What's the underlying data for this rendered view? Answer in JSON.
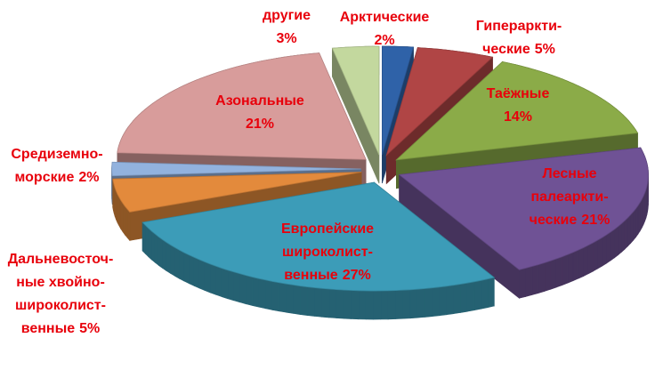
{
  "chart_data": {
    "type": "pie3d",
    "categories": [
      [
        "Арктические"
      ],
      [
        "Гипераркти-",
        "ческие"
      ],
      [
        "Таёжные"
      ],
      [
        "Лесные",
        "палеаркти-",
        "ческие"
      ],
      [
        "Европейские",
        "широколист-",
        "венные"
      ],
      [
        "Дальневосточ-",
        "ные хвойно-",
        "широколист-",
        "венные"
      ],
      [
        "Средиземно-",
        "морские"
      ],
      [
        "Азональные"
      ],
      [
        "другие"
      ]
    ],
    "values": [
      2,
      5,
      14,
      21,
      27,
      5,
      2,
      21,
      3
    ],
    "value_labels": [
      "2%",
      "5%",
      "14%",
      "21%",
      "27%",
      "5%",
      "2%",
      "21%",
      "3%"
    ],
    "colors": [
      "#2f62a8",
      "#b04545",
      "#8bab48",
      "#6f5295",
      "#3c9cb8",
      "#e38a3c",
      "#92b2de",
      "#d89c9b",
      "#c3d89e"
    ]
  }
}
